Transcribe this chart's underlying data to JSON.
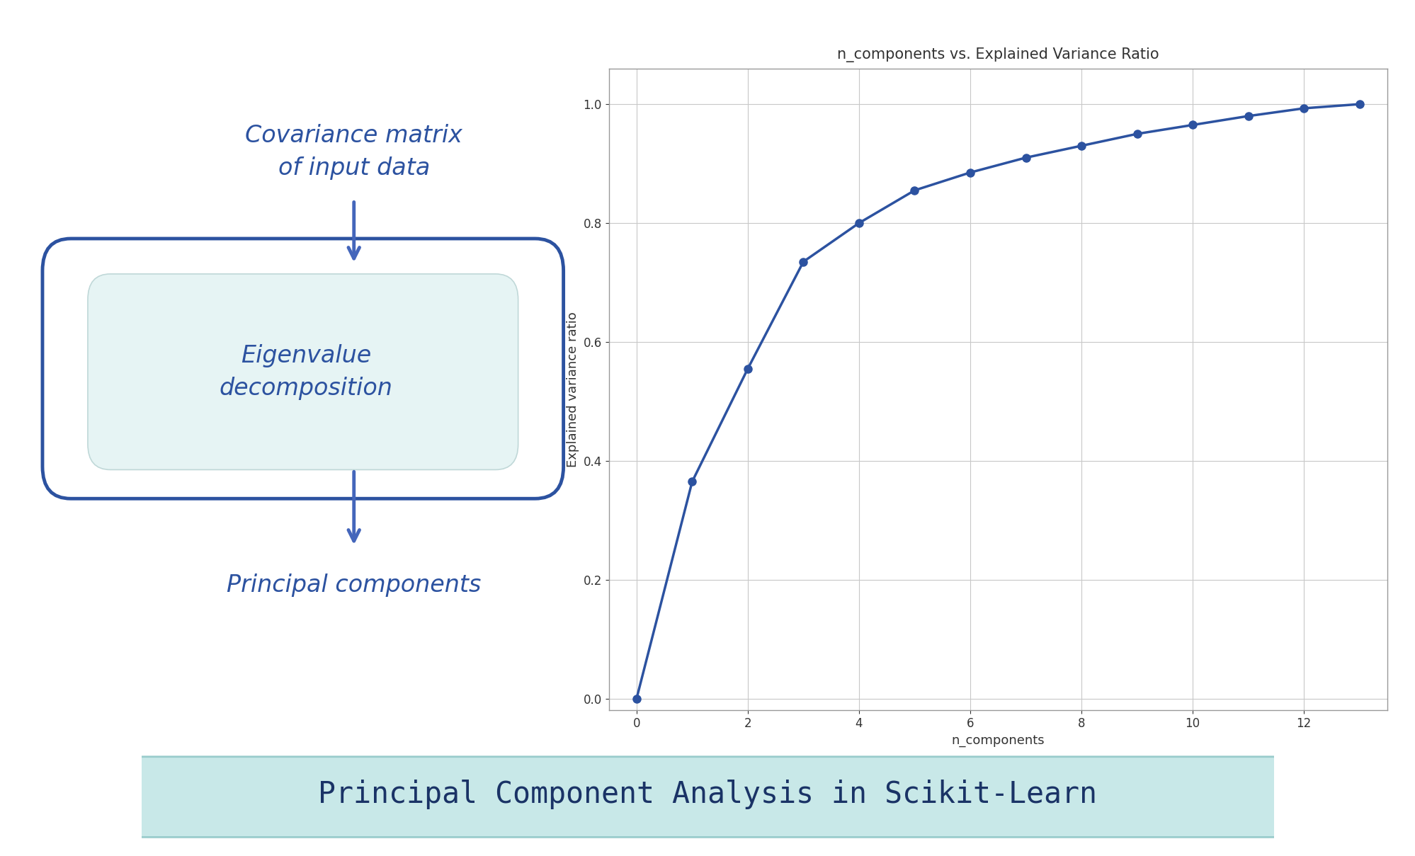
{
  "title": "n_components vs. Explained Variance Ratio",
  "xlabel": "n_components",
  "ylabel": "Explained variance ratio",
  "x_data": [
    0,
    1,
    2,
    3,
    4,
    5,
    6,
    7,
    8,
    9,
    10,
    11,
    12,
    13
  ],
  "y_data": [
    0.0,
    0.365,
    0.555,
    0.735,
    0.8,
    0.855,
    0.885,
    0.91,
    0.93,
    0.95,
    0.965,
    0.98,
    0.993,
    1.0
  ],
  "line_color": "#2c52a0",
  "marker_color": "#2c52a0",
  "bg_color": "#ffffff",
  "grid_color": "#c8c8c8",
  "flowchart_text_color": "#2c52a0",
  "box_border_color": "#2c52a0",
  "box_fill_color": "#ffffff",
  "inner_box_fill_color": "#e6f4f4",
  "inner_box_border_color": "#c0d8d8",
  "arrow_color": "#4466bb",
  "label1": "Covariance matrix\nof input data",
  "label2": "Eigenvalue\ndecomposition",
  "label3": "Principal components",
  "banner_text": "Principal Component Analysis in Scikit-Learn",
  "banner_bg": "#c8e8e8",
  "banner_border": "#99cccc",
  "ylim": [
    -0.02,
    1.06
  ],
  "xlim": [
    -0.5,
    13.5
  ],
  "xticks": [
    0,
    2,
    4,
    6,
    8,
    10,
    12
  ],
  "yticks": [
    0.0,
    0.2,
    0.4,
    0.6,
    0.8,
    1.0
  ]
}
